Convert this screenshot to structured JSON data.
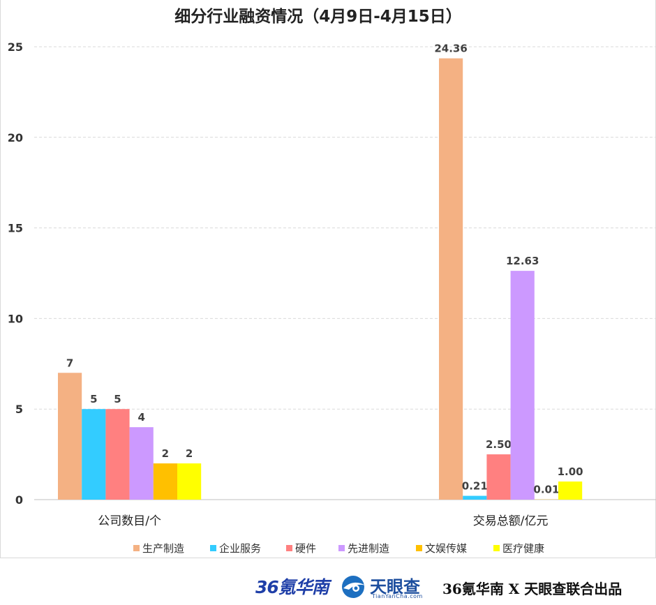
{
  "chart_data": {
    "type": "bar",
    "title": "细分行业融资情况（4月9日-4月15日）",
    "categories": [
      "公司数目/个",
      "交易总额/亿元"
    ],
    "ylim": [
      0,
      25
    ],
    "yticks": [
      "0",
      "5",
      "10",
      "15",
      "20",
      "25"
    ],
    "grid": true,
    "legend_position": "bottom",
    "series": [
      {
        "name": "生产制造",
        "color": "#f4b183",
        "values": [
          7,
          24.36
        ],
        "labels": [
          "7",
          "24.36"
        ]
      },
      {
        "name": "企业服务",
        "color": "#33ccff",
        "values": [
          5,
          0.21
        ],
        "labels": [
          "5",
          "0.21"
        ]
      },
      {
        "name": "硬件",
        "color": "#ff8080",
        "values": [
          5,
          2.5
        ],
        "labels": [
          "5",
          "2.50"
        ]
      },
      {
        "name": "先进制造",
        "color": "#cc99ff",
        "values": [
          4,
          12.63
        ],
        "labels": [
          "4",
          "12.63"
        ]
      },
      {
        "name": "文娱传媒",
        "color": "#ffc000",
        "values": [
          2,
          0.01
        ],
        "labels": [
          "2",
          "0.01"
        ]
      },
      {
        "name": "医疗健康",
        "color": "#ffff00",
        "values": [
          2,
          1.0
        ],
        "labels": [
          "2",
          "1.00"
        ]
      }
    ]
  },
  "footer": {
    "logo_36kr": "36氪华南",
    "tianyancha_name": "天眼查",
    "tianyancha_domain": "TianYanCha.com",
    "credit": "36氪华南 X 天眼查联合出品"
  }
}
